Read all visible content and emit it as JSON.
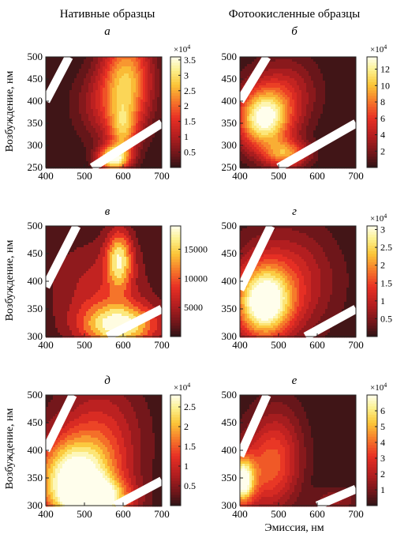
{
  "figure": {
    "column_titles": [
      "Нативные образцы",
      "Фотоокисленные образцы"
    ],
    "ylabel": "Возбуждение, нм",
    "xlabel": "Эмиссия, нм"
  },
  "chart_data": [
    {
      "type": "heatmap",
      "panel_label": "а",
      "chart": "contour",
      "x_ticks": [
        400,
        500,
        600,
        700
      ],
      "y_ticks": [
        250,
        300,
        350,
        400,
        450,
        500
      ],
      "xlim": [
        400,
        700
      ],
      "ylim": [
        250,
        500
      ],
      "colorbar": {
        "ticks": [
          "0.5",
          "1",
          "1.5",
          "2",
          "2.5",
          "3",
          "3.5"
        ],
        "tick_values": [
          0.5,
          1,
          1.5,
          2,
          2.5,
          3,
          3.5
        ],
        "range": [
          0,
          3.6
        ],
        "multiplier": "×10",
        "multiplier_exp": "4"
      },
      "peaks": [
        {
          "x": 610,
          "y": 455,
          "value": 2.4,
          "sx": 45,
          "sy": 80
        },
        {
          "x": 575,
          "y": 270,
          "value": 3.3,
          "sx": 28,
          "sy": 20
        },
        {
          "x": 600,
          "y": 330,
          "value": 1.6,
          "sx": 25,
          "sy": 40
        },
        {
          "x": 560,
          "y": 390,
          "value": 1.0,
          "sx": 60,
          "sy": 60
        }
      ],
      "scatter_bands": [
        {
          "x1": 400,
          "y1": 400,
          "x2": 460,
          "y2": 500
        },
        {
          "x1": 520,
          "y1": 250,
          "x2": 700,
          "y2": 350
        }
      ]
    },
    {
      "type": "heatmap",
      "panel_label": "б",
      "chart": "contour",
      "x_ticks": [
        400,
        500,
        600,
        700
      ],
      "y_ticks": [
        250,
        300,
        350,
        400,
        450,
        500
      ],
      "xlim": [
        400,
        700
      ],
      "ylim": [
        250,
        500
      ],
      "colorbar": {
        "ticks": [
          "2",
          "4",
          "6",
          "8",
          "10",
          "12"
        ],
        "tick_values": [
          2,
          4,
          6,
          8,
          10,
          12
        ],
        "range": [
          0,
          13.5
        ],
        "multiplier": "×10",
        "multiplier_exp": "4"
      },
      "peaks": [
        {
          "x": 460,
          "y": 360,
          "value": 13,
          "sx": 48,
          "sy": 48
        },
        {
          "x": 520,
          "y": 280,
          "value": 8,
          "sx": 40,
          "sy": 22
        },
        {
          "x": 520,
          "y": 420,
          "value": 4,
          "sx": 60,
          "sy": 60
        }
      ],
      "scatter_bands": [
        {
          "x1": 400,
          "y1": 400,
          "x2": 470,
          "y2": 500
        },
        {
          "x1": 500,
          "y1": 250,
          "x2": 700,
          "y2": 350
        }
      ]
    },
    {
      "type": "heatmap",
      "panel_label": "в",
      "chart": "contour",
      "x_ticks": [
        400,
        500,
        600,
        700
      ],
      "y_ticks": [
        300,
        350,
        400,
        450,
        500
      ],
      "xlim": [
        400,
        700
      ],
      "ylim": [
        300,
        500
      ],
      "colorbar": {
        "ticks": [
          "5000",
          "10000",
          "15000"
        ],
        "tick_values": [
          5000,
          10000,
          15000
        ],
        "range": [
          0,
          19000
        ],
        "multiplier": "",
        "multiplier_exp": ""
      },
      "peaks": [
        {
          "x": 590,
          "y": 320,
          "value": 17500,
          "sx": 70,
          "sy": 28
        },
        {
          "x": 590,
          "y": 440,
          "value": 14500,
          "sx": 24,
          "sy": 38
        },
        {
          "x": 540,
          "y": 390,
          "value": 6000,
          "sx": 90,
          "sy": 60
        }
      ],
      "scatter_bands": [
        {
          "x1": 400,
          "y1": 390,
          "x2": 480,
          "y2": 500
        },
        {
          "x1": 560,
          "y1": 300,
          "x2": 700,
          "y2": 350
        }
      ]
    },
    {
      "type": "heatmap",
      "panel_label": "г",
      "chart": "contour",
      "x_ticks": [
        400,
        500,
        600,
        700
      ],
      "y_ticks": [
        300,
        350,
        400,
        450,
        500
      ],
      "xlim": [
        400,
        700
      ],
      "ylim": [
        300,
        500
      ],
      "colorbar": {
        "ticks": [
          "0.5",
          "1",
          "1.5",
          "2",
          "2.5",
          "3"
        ],
        "tick_values": [
          0.5,
          1,
          1.5,
          2,
          2.5,
          3
        ],
        "range": [
          0,
          3.1
        ],
        "multiplier": "×10",
        "multiplier_exp": "4"
      },
      "peaks": [
        {
          "x": 460,
          "y": 360,
          "value": 3.0,
          "sx": 50,
          "sy": 45
        },
        {
          "x": 520,
          "y": 400,
          "value": 1.2,
          "sx": 90,
          "sy": 70
        }
      ],
      "scatter_bands": [
        {
          "x1": 400,
          "y1": 385,
          "x2": 480,
          "y2": 500
        },
        {
          "x1": 570,
          "y1": 300,
          "x2": 700,
          "y2": 350
        }
      ]
    },
    {
      "type": "heatmap",
      "panel_label": "д",
      "chart": "contour",
      "x_ticks": [
        400,
        500,
        600,
        700
      ],
      "y_ticks": [
        300,
        350,
        400,
        450,
        500
      ],
      "xlim": [
        400,
        700
      ],
      "ylim": [
        300,
        500
      ],
      "colorbar": {
        "ticks": [
          "0.5",
          "1",
          "1.5",
          "2",
          "2.5"
        ],
        "tick_values": [
          0.5,
          1,
          1.5,
          2,
          2.5
        ],
        "range": [
          0,
          2.8
        ],
        "multiplier": "×10",
        "multiplier_exp": "4"
      },
      "peaks": [
        {
          "x": 470,
          "y": 350,
          "value": 2.7,
          "sx": 70,
          "sy": 50
        },
        {
          "x": 530,
          "y": 310,
          "value": 2.5,
          "sx": 60,
          "sy": 25
        },
        {
          "x": 540,
          "y": 420,
          "value": 1.1,
          "sx": 80,
          "sy": 80
        }
      ],
      "scatter_bands": [
        {
          "x1": 400,
          "y1": 400,
          "x2": 470,
          "y2": 500
        },
        {
          "x1": 580,
          "y1": 300,
          "x2": 700,
          "y2": 345
        }
      ]
    },
    {
      "type": "heatmap",
      "panel_label": "е",
      "chart": "contour",
      "x_ticks": [
        400,
        500,
        600,
        700
      ],
      "y_ticks": [
        300,
        350,
        400,
        450,
        500
      ],
      "xlim": [
        400,
        700
      ],
      "ylim": [
        300,
        500
      ],
      "colorbar": {
        "ticks": [
          "1",
          "2",
          "3",
          "4",
          "5",
          "6"
        ],
        "tick_values": [
          1,
          2,
          3,
          4,
          5,
          6
        ],
        "range": [
          0,
          7
        ],
        "multiplier": "×10",
        "multiplier_exp": "4"
      },
      "peaks": [
        {
          "x": 405,
          "y": 345,
          "value": 6.8,
          "sx": 22,
          "sy": 30
        },
        {
          "x": 470,
          "y": 360,
          "value": 3.0,
          "sx": 55,
          "sy": 55
        },
        {
          "x": 500,
          "y": 420,
          "value": 1.5,
          "sx": 50,
          "sy": 60
        },
        {
          "x": 650,
          "y": 310,
          "value": 1.6,
          "sx": 40,
          "sy": 15
        }
      ],
      "scatter_bands": [
        {
          "x1": 400,
          "y1": 390,
          "x2": 470,
          "y2": 500
        },
        {
          "x1": 600,
          "y1": 300,
          "x2": 700,
          "y2": 330
        }
      ]
    }
  ]
}
